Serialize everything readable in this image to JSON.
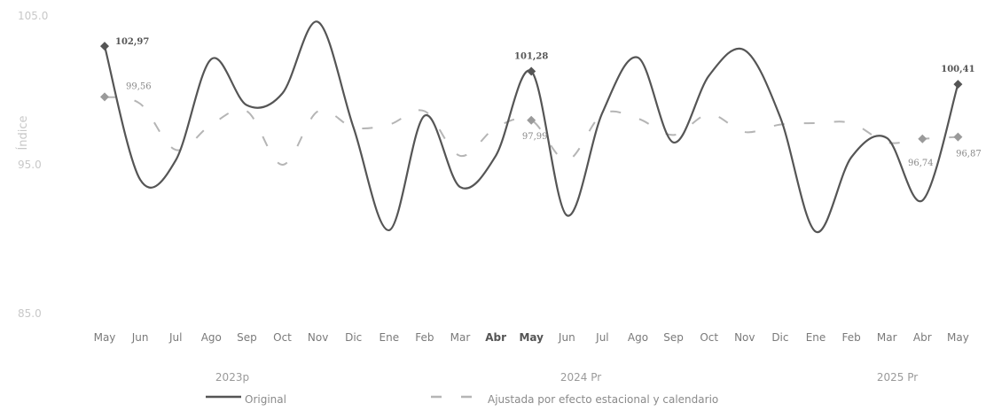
{
  "chart_data": {
    "type": "line",
    "title": "",
    "ylabel": "Índice",
    "xlabel": "",
    "ylim": [
      85,
      105
    ],
    "yticks": [
      "85.0",
      "95.0",
      "105.0"
    ],
    "categories": [
      "May",
      "Jun",
      "Jul",
      "Ago",
      "Sep",
      "Oct",
      "Nov",
      "Dic",
      "Ene",
      "Feb",
      "Mar",
      "Abr",
      "May",
      "Jun",
      "Jul",
      "Ago",
      "Sep",
      "Oct",
      "Nov",
      "Dic",
      "Ene",
      "Feb",
      "Mar",
      "Abr",
      "May"
    ],
    "year_groups": [
      {
        "label": "2023p",
        "start": 0,
        "end": 7
      },
      {
        "label": "2024 Pr",
        "start": 8,
        "end": 19
      },
      {
        "label": "2025 Pr",
        "start": 20,
        "end": 24
      }
    ],
    "series": [
      {
        "name": "Original",
        "color": "#555555",
        "dash": false,
        "values": [
          102.97,
          94.0,
          95.3,
          102.1,
          99.0,
          99.8,
          104.6,
          97.5,
          90.6,
          98.3,
          93.5,
          95.6,
          101.28,
          91.6,
          98.5,
          102.2,
          96.5,
          101.0,
          102.7,
          98.2,
          90.5,
          95.5,
          96.8,
          92.6,
          100.41
        ]
      },
      {
        "name": "Ajustada por efecto estacional y calendario",
        "color": "#b5b5b5",
        "dash": true,
        "values": [
          99.56,
          99.1,
          96.0,
          97.7,
          98.6,
          95.0,
          98.6,
          97.5,
          97.7,
          98.6,
          95.6,
          97.5,
          97.99,
          95.3,
          98.4,
          98.1,
          97.0,
          98.4,
          97.2,
          97.7,
          97.8,
          97.8,
          96.5,
          96.74,
          96.87
        ]
      }
    ],
    "annotations": [
      {
        "series": 0,
        "index": 0,
        "text": "102,97"
      },
      {
        "series": 1,
        "index": 0,
        "text": "99,56"
      },
      {
        "series": 0,
        "index": 12,
        "text": "101,28"
      },
      {
        "series": 1,
        "index": 12,
        "text": "97,99"
      },
      {
        "series": 0,
        "index": 24,
        "text": "100,41"
      },
      {
        "series": 1,
        "index": 23,
        "text": "96,74"
      },
      {
        "series": 1,
        "index": 24,
        "text": "96,87"
      }
    ],
    "bold_category_indices": [
      11,
      12
    ],
    "legend_position": "bottom",
    "grid": false
  }
}
